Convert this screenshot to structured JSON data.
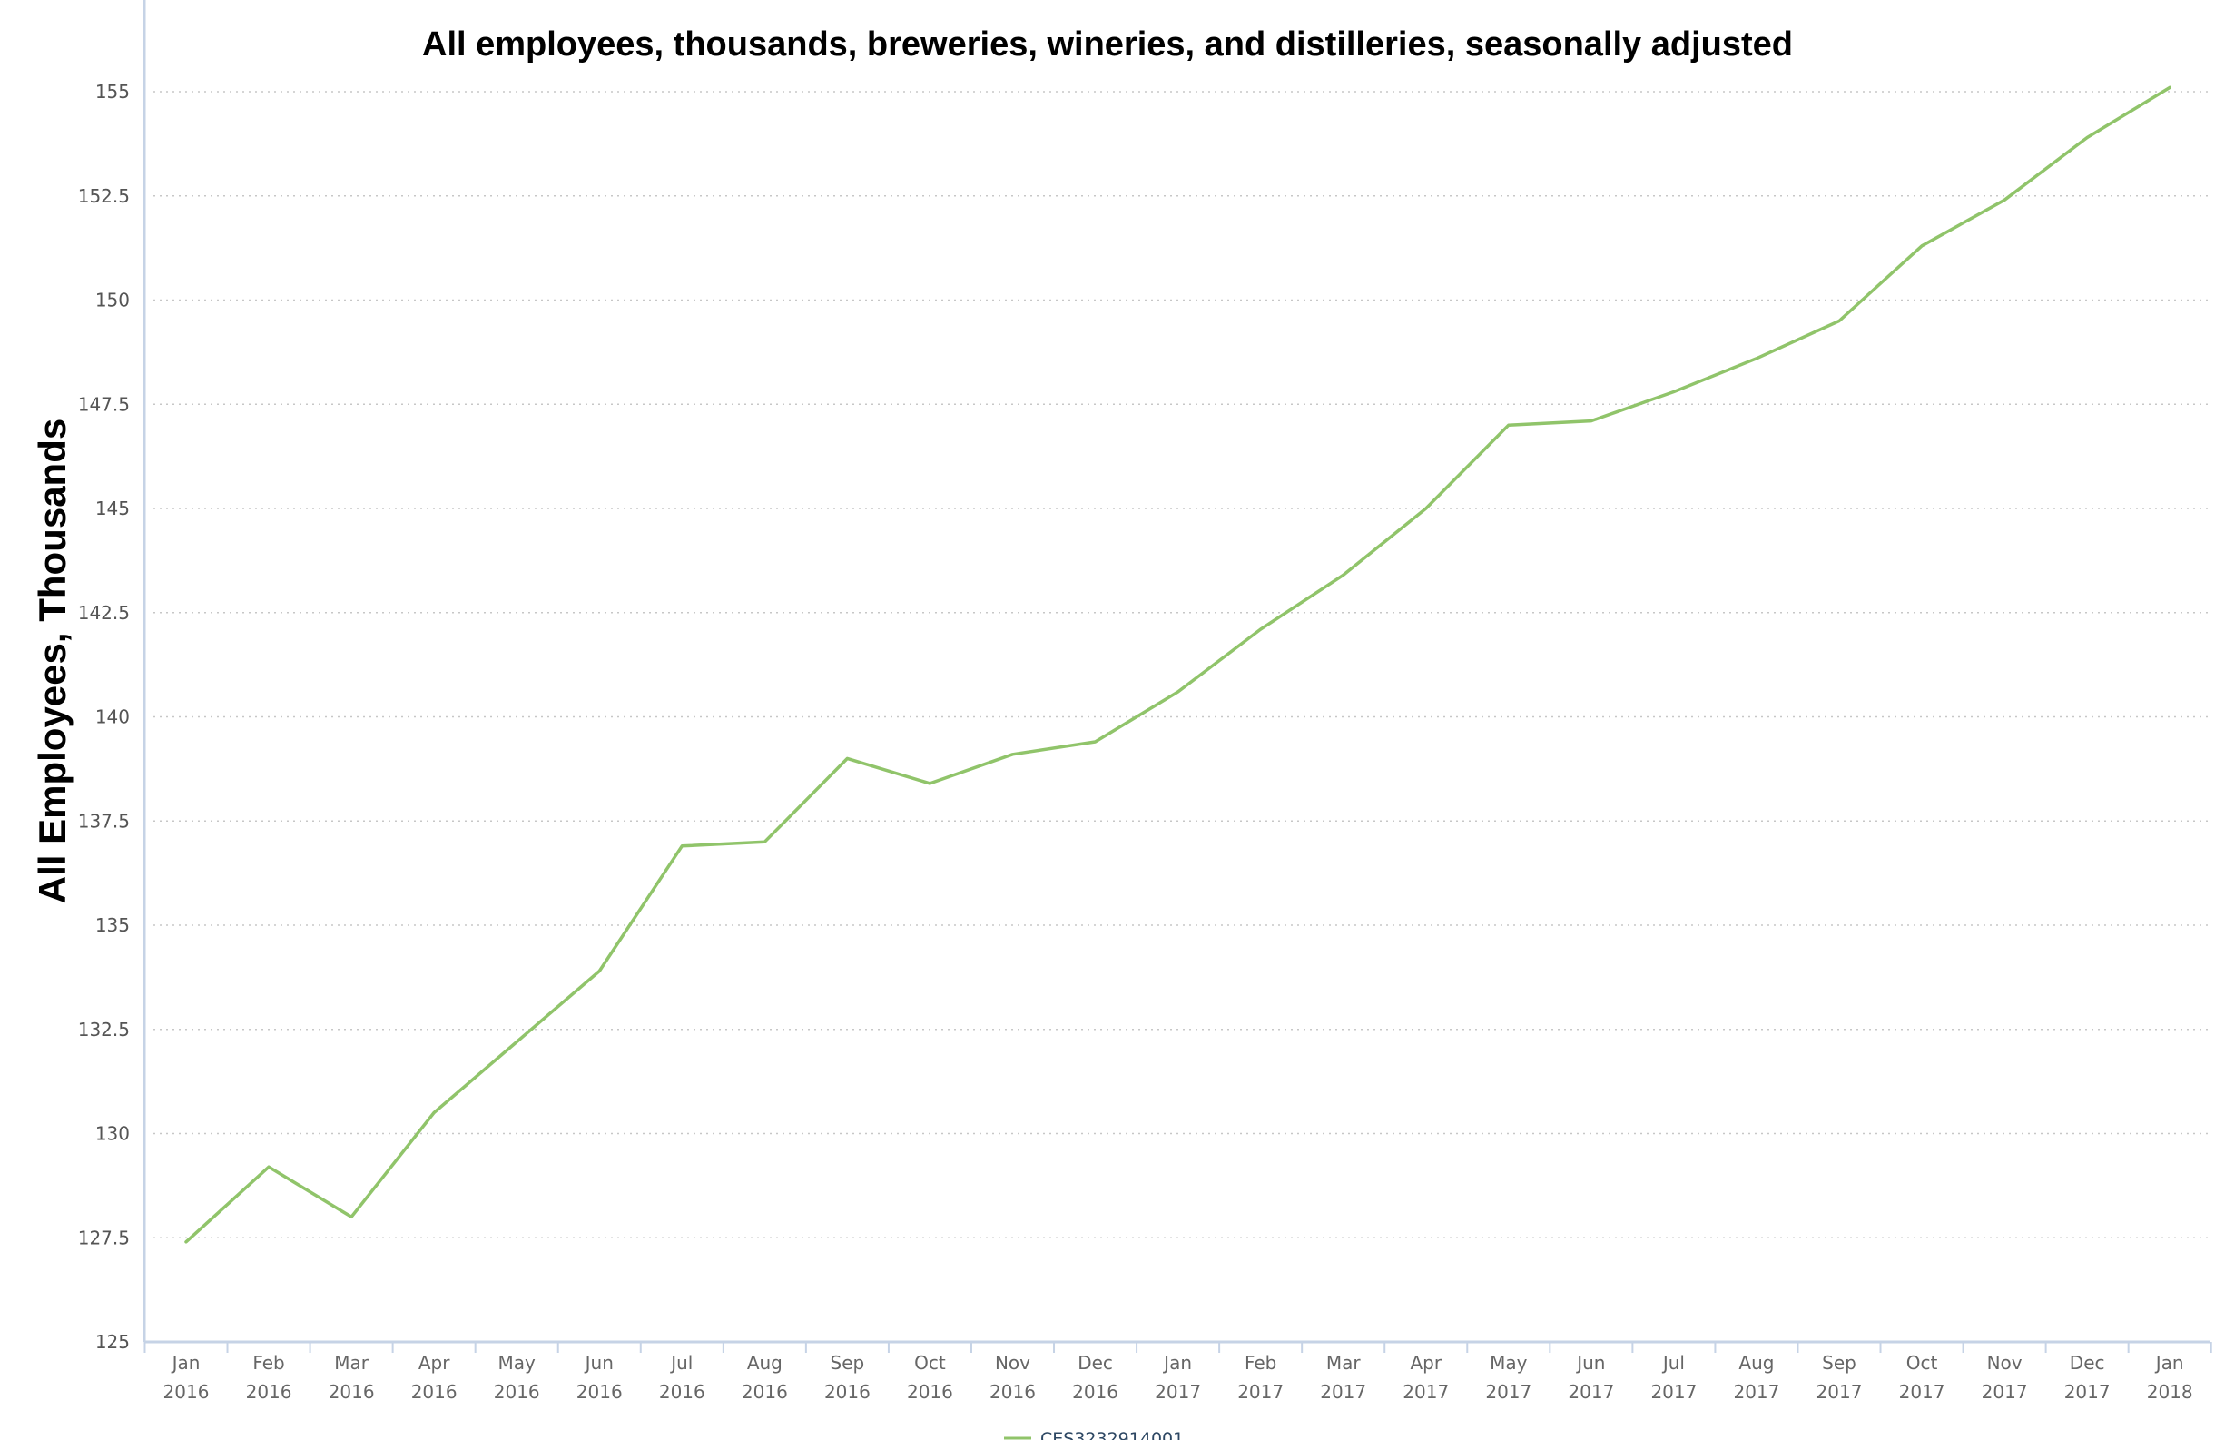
{
  "chart_data": {
    "type": "line",
    "title": "All employees, thousands, breweries, wineries, and distilleries, seasonally adjusted",
    "xlabel": "",
    "ylabel": "All Employees, Thousands",
    "ylim": [
      125,
      155
    ],
    "yticks": [
      "125",
      "127.5",
      "130",
      "132.5",
      "135",
      "137.5",
      "140",
      "142.5",
      "145",
      "147.5",
      "150",
      "152.5",
      "155"
    ],
    "grid": true,
    "legend_position": "bottom",
    "categories": [
      [
        "Jan",
        "2016"
      ],
      [
        "Feb",
        "2016"
      ],
      [
        "Mar",
        "2016"
      ],
      [
        "Apr",
        "2016"
      ],
      [
        "May",
        "2016"
      ],
      [
        "Jun",
        "2016"
      ],
      [
        "Jul",
        "2016"
      ],
      [
        "Aug",
        "2016"
      ],
      [
        "Sep",
        "2016"
      ],
      [
        "Oct",
        "2016"
      ],
      [
        "Nov",
        "2016"
      ],
      [
        "Dec",
        "2016"
      ],
      [
        "Jan",
        "2017"
      ],
      [
        "Feb",
        "2017"
      ],
      [
        "Mar",
        "2017"
      ],
      [
        "Apr",
        "2017"
      ],
      [
        "May",
        "2017"
      ],
      [
        "Jun",
        "2017"
      ],
      [
        "Jul",
        "2017"
      ],
      [
        "Aug",
        "2017"
      ],
      [
        "Sep",
        "2017"
      ],
      [
        "Oct",
        "2017"
      ],
      [
        "Nov",
        "2017"
      ],
      [
        "Dec",
        "2017"
      ],
      [
        "Jan",
        "2018"
      ]
    ],
    "series": [
      {
        "name": "CES3232914001",
        "color": "#90c46a",
        "values": [
          127.4,
          129.2,
          128.0,
          130.5,
          132.2,
          133.9,
          136.9,
          137.0,
          139.0,
          138.4,
          139.1,
          139.4,
          140.6,
          142.1,
          143.4,
          145.0,
          147.0,
          147.1,
          147.8,
          148.6,
          149.5,
          151.3,
          152.4,
          153.9,
          155.1
        ]
      }
    ]
  }
}
